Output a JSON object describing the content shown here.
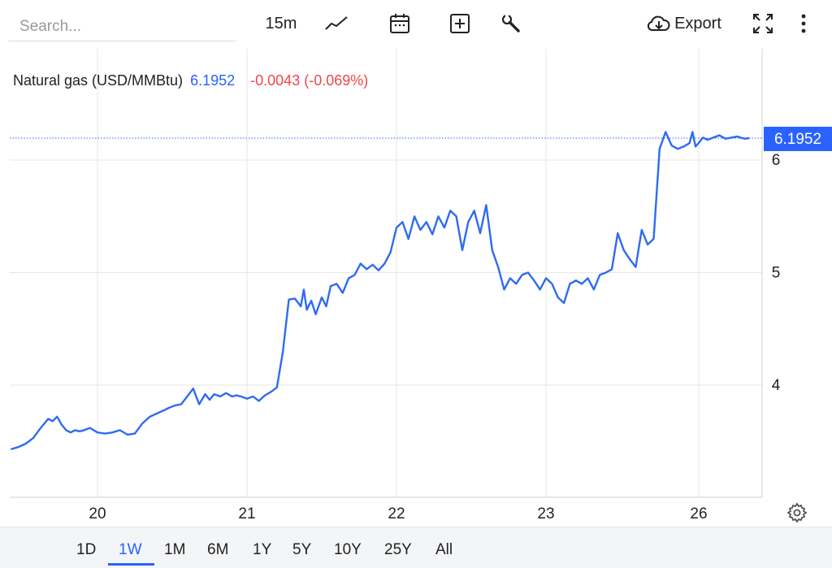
{
  "toolbar": {
    "search_placeholder": "Search...",
    "interval": "15m",
    "export_label": "Export"
  },
  "legend": {
    "name": "Natural gas (USD/MMBtu)",
    "price": "6.1952",
    "change": "-0.0043 (-0.069%)"
  },
  "ranges": [
    "1D",
    "1W",
    "1M",
    "6M",
    "1Y",
    "5Y",
    "10Y",
    "25Y",
    "All"
  ],
  "active_range": "1W",
  "colors": {
    "line": "#2f6bf0",
    "accent": "#2962ff",
    "negative": "#f0454b",
    "grid": "#e6e6e6"
  },
  "chart_data": {
    "type": "line",
    "title": "Natural gas (USD/MMBtu)",
    "last_value": 6.1952,
    "x_ticks": [
      {
        "x": 0,
        "label": "20"
      },
      {
        "x": 1,
        "label": "21"
      },
      {
        "x": 2,
        "label": "22"
      },
      {
        "x": 3,
        "label": "23"
      },
      {
        "x": 4,
        "label": "26"
      }
    ],
    "y_ticks": [
      4,
      5,
      6
    ],
    "xlim": [
      -0.58,
      4.4
    ],
    "ylim": [
      3.0,
      6.9
    ],
    "grid": true,
    "series": [
      {
        "x": [
          -0.58,
          -0.53,
          -0.48,
          -0.43,
          -0.38,
          -0.33,
          -0.3,
          -0.27,
          -0.24,
          -0.21,
          -0.18,
          -0.15,
          -0.12,
          -0.09,
          -0.05,
          0.0,
          0.05,
          0.1,
          0.15,
          0.2,
          0.25,
          0.3,
          0.35,
          0.4,
          0.45,
          0.48,
          0.52,
          0.56,
          0.6,
          0.64,
          0.68,
          0.72,
          0.75,
          0.78,
          0.82,
          0.86,
          0.9,
          0.93,
          0.96,
          1.0,
          1.04,
          1.08,
          1.12,
          1.16,
          1.2,
          1.24,
          1.28,
          1.32,
          1.36,
          1.38,
          1.4,
          1.43,
          1.46,
          1.5,
          1.53,
          1.56,
          1.6,
          1.64,
          1.68,
          1.72,
          1.76,
          1.8,
          1.84,
          1.88,
          1.92,
          1.96,
          2.0,
          2.04,
          2.08,
          2.12,
          2.16,
          2.2,
          2.24,
          2.28,
          2.32,
          2.36,
          2.4,
          2.44,
          2.48,
          2.52,
          2.56,
          2.6,
          2.64,
          2.68,
          2.72,
          2.76,
          2.8,
          2.84,
          2.88,
          2.92,
          2.96,
          3.0,
          3.04,
          3.08,
          3.12,
          3.16,
          3.2,
          3.24,
          3.28,
          3.32,
          3.36,
          3.4,
          3.44,
          3.48,
          3.52,
          3.56,
          3.6,
          3.64,
          3.68,
          3.72,
          3.76,
          3.8,
          3.84,
          3.88,
          3.92,
          3.96,
          3.98,
          4.0,
          4.02,
          4.05,
          4.08,
          4.12,
          4.16,
          4.2,
          4.24,
          4.28,
          4.3,
          4.33,
          4.36
        ],
        "y": [
          3.43,
          3.45,
          3.48,
          3.53,
          3.62,
          3.7,
          3.68,
          3.72,
          3.65,
          3.6,
          3.58,
          3.6,
          3.59,
          3.6,
          3.62,
          3.58,
          3.57,
          3.58,
          3.6,
          3.56,
          3.57,
          3.66,
          3.72,
          3.75,
          3.78,
          3.8,
          3.82,
          3.83,
          3.9,
          3.97,
          3.83,
          3.92,
          3.87,
          3.92,
          3.9,
          3.93,
          3.9,
          3.91,
          3.9,
          3.88,
          3.9,
          3.86,
          3.91,
          3.94,
          3.98,
          4.3,
          4.76,
          4.77,
          4.7,
          4.85,
          4.67,
          4.75,
          4.63,
          4.78,
          4.7,
          4.88,
          4.9,
          4.82,
          4.95,
          4.98,
          5.08,
          5.03,
          5.07,
          5.02,
          5.08,
          5.18,
          5.4,
          5.45,
          5.3,
          5.5,
          5.38,
          5.45,
          5.34,
          5.5,
          5.4,
          5.55,
          5.5,
          5.2,
          5.45,
          5.55,
          5.35,
          5.6,
          5.2,
          5.05,
          4.85,
          4.95,
          4.9,
          4.98,
          5.0,
          4.93,
          4.85,
          4.95,
          4.9,
          4.78,
          4.73,
          4.9,
          4.93,
          4.9,
          4.95,
          4.85,
          4.98,
          5.0,
          5.03,
          5.35,
          5.2,
          5.12,
          5.05,
          5.38,
          5.25,
          5.3,
          6.1,
          6.25,
          6.13,
          6.1,
          6.12,
          6.15,
          6.25,
          6.12,
          6.15,
          6.2,
          6.18,
          6.2,
          6.22,
          6.19,
          6.2,
          6.21,
          6.2,
          6.19,
          6.1952
        ]
      }
    ]
  }
}
